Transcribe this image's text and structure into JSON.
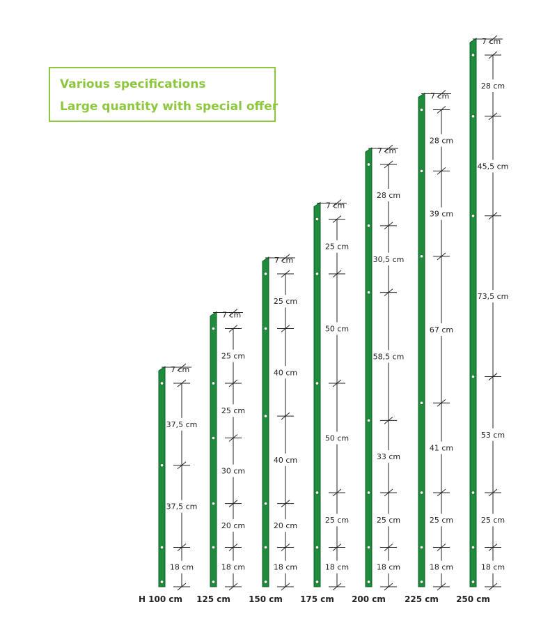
{
  "banner": {
    "line1": "Various specifications",
    "line2": "Large quantity with special offer",
    "color": "#8dc63f"
  },
  "post_color": "#1e8c3c",
  "posts": [
    {
      "height_label": "H 100 cm",
      "segments": [
        "7 cm",
        "37,5 cm",
        "37,5 cm",
        "18 cm"
      ]
    },
    {
      "height_label": "125 cm",
      "segments": [
        "7 cm",
        "25 cm",
        "25 cm",
        "30 cm",
        "20 cm",
        "18 cm"
      ]
    },
    {
      "height_label": "150 cm",
      "segments": [
        "7 cm",
        "25 cm",
        "40 cm",
        "40 cm",
        "20 cm",
        "18 cm"
      ]
    },
    {
      "height_label": "175 cm",
      "segments": [
        "7 cm",
        "25 cm",
        "50 cm",
        "50 cm",
        "25 cm",
        "18 cm"
      ]
    },
    {
      "height_label": "200 cm",
      "segments": [
        "7 cm",
        "28 cm",
        "30,5 cm",
        "58,5 cm",
        "33 cm",
        "25 cm",
        "18 cm"
      ]
    },
    {
      "height_label": "225 cm",
      "segments": [
        "7 cm",
        "28 cm",
        "39 cm",
        "67 cm",
        "41 cm",
        "25 cm",
        "18 cm"
      ]
    },
    {
      "height_label": "250 cm",
      "segments": [
        "7 cm",
        "28 cm",
        "45,5 cm",
        "73,5 cm",
        "53 cm",
        "25 cm",
        "18 cm"
      ]
    }
  ]
}
